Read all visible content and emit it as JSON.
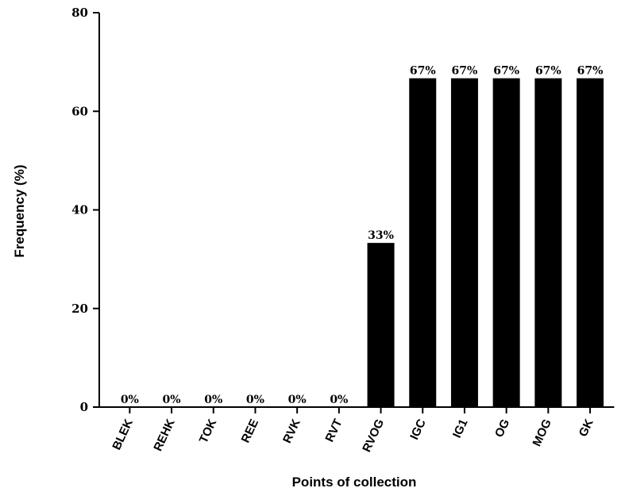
{
  "chart_data": {
    "type": "bar",
    "title": "",
    "xlabel": "Points of collection",
    "ylabel": "Frequency (%)",
    "ylim": [
      0,
      80
    ],
    "yticks": [
      0,
      20,
      40,
      60,
      80
    ],
    "categories": [
      "BLEK",
      "REHK",
      "TOK",
      "REE",
      "RVK",
      "RVT",
      "RVOG",
      "IGC",
      "IG1",
      "OG",
      "MOG",
      "GK"
    ],
    "values": [
      0,
      0,
      0,
      0,
      0,
      0,
      33.3,
      66.7,
      66.7,
      66.7,
      66.7,
      66.7
    ],
    "data_labels": [
      "0%",
      "0%",
      "0%",
      "0%",
      "0%",
      "0%",
      "33%",
      "67%",
      "67%",
      "67%",
      "67%",
      "67%"
    ],
    "bar_color": "#000000",
    "grid": false,
    "legend": "none"
  }
}
